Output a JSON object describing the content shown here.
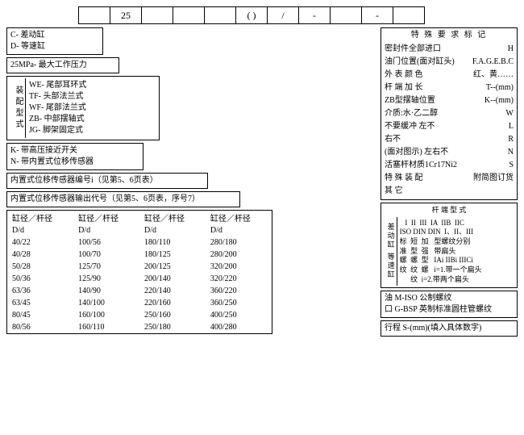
{
  "top_cells": [
    "",
    "25",
    "",
    "",
    "",
    "( )",
    "/",
    "-",
    "",
    "-",
    ""
  ],
  "type_box": {
    "c": "C- 差动缸",
    "d": "D- 等速缸"
  },
  "pressure": "25MPa- 最大工作压力",
  "mount": {
    "label": "装配型式",
    "items": [
      "WE- 尾部耳环式",
      "TF- 头部法兰式",
      "WF- 尾部法兰式",
      "ZB- 中部摆轴式",
      "JG- 脚架固定式"
    ]
  },
  "sensor_switch": {
    "k": "K- 带高压接近开关",
    "n": "N- 带内置式位移传感器"
  },
  "sensor_code": "内置式位移传感器编号i（见第5、6页表）",
  "sensor_output": "内置式位移传感器输出代号（见第5、6页表，序号7）",
  "dia_table": {
    "header": "缸径／杆径",
    "sub": "D/d",
    "rows": [
      [
        "40/22",
        "100/56",
        "180/110",
        "280/180"
      ],
      [
        "40/28",
        "100/70",
        "180/125",
        "280/200"
      ],
      [
        "50/28",
        "125/70",
        "200/125",
        "320/200"
      ],
      [
        "50/36",
        "125/90",
        "200/140",
        "320/220"
      ],
      [
        "63/36",
        "140/90",
        "220/140",
        "360/220"
      ],
      [
        "63/45",
        "140/100",
        "220/160",
        "360/250"
      ],
      [
        "80/45",
        "160/100",
        "250/160",
        "400/250"
      ],
      [
        "80/56",
        "160/110",
        "250/180",
        "400/280"
      ]
    ]
  },
  "special": {
    "title": "特 殊 要 求   标  记",
    "rows": [
      [
        "密封件全部进口",
        "H"
      ],
      [
        "油门位置(面对缸头)",
        "F.A.G.E.B.C"
      ],
      [
        "外 表 颜 色",
        "红、黄……"
      ],
      [
        "杆 端 加 长",
        "T--(mm)"
      ],
      [
        "ZB型摆轴位置",
        "K--(mm)"
      ],
      [
        "介质:水·乙二醇",
        "W"
      ],
      [
        "不要缓冲  左不",
        "L"
      ],
      [
        "         右不",
        "R"
      ],
      [
        "(面对图示) 左右不",
        "N"
      ],
      [
        "活塞杆材质1Cr17Ni2",
        "S"
      ],
      [
        "特 殊 装 配",
        "附简图订货"
      ],
      [
        "其   它",
        ""
      ]
    ]
  },
  "rod_end": {
    "title": "杆 端 型 式",
    "left_labels": "差动缸 等速缸",
    "lines": [
      "   I  II  III  IA  IIB  IIC",
      "ISO DIN DIN  I、II、III",
      "标  短  加   型螺纹分别",
      "准  型  强   带扁头",
      "螺  螺  型   IAi IIBi IIICi",
      "纹  纹  螺   i=1.带一个扁头",
      "      纹  i=2.带两个扁头"
    ]
  },
  "thread": {
    "m": "油   M-ISO 公制螺纹",
    "g": "口   G-BSP 英制标准圆柱管螺纹"
  },
  "stroke": "行程 S-(mm)(填入具体数字)"
}
